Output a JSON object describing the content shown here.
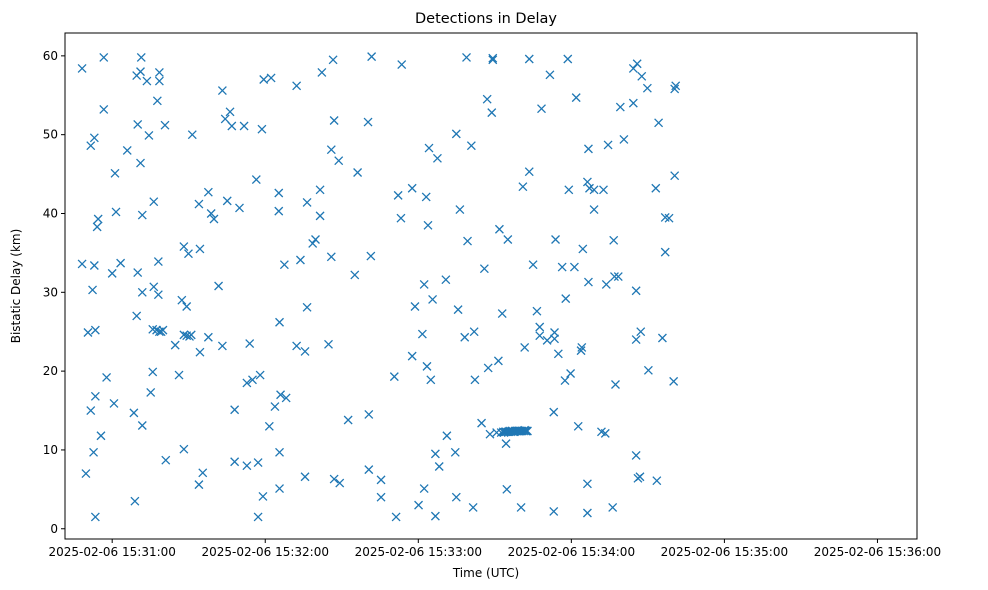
{
  "colors": {
    "marker": "#1f77b4",
    "axis": "#000000",
    "background": "#ffffff"
  },
  "chart_data": {
    "type": "scatter",
    "marker": "x",
    "title": "Detections in Delay",
    "xlabel": "Time (UTC)",
    "ylabel": "Bistatic Delay (km)",
    "xlim": [
      -18.5,
      315.5
    ],
    "ylim": [
      -1.3,
      62.9
    ],
    "x_unit": "seconds after 2025-02-06 15:31:00",
    "xticks": [
      {
        "value": 0,
        "label": "2025-02-06 15:31:00"
      },
      {
        "value": 60,
        "label": "2025-02-06 15:32:00"
      },
      {
        "value": 120,
        "label": "2025-02-06 15:33:00"
      },
      {
        "value": 180,
        "label": "2025-02-06 15:34:00"
      },
      {
        "value": 240,
        "label": "2025-02-06 15:35:00"
      },
      {
        "value": 300,
        "label": "2025-02-06 15:36:00"
      }
    ],
    "yticks": [
      0,
      10,
      20,
      30,
      40,
      50,
      60
    ],
    "series": [
      {
        "name": "detections",
        "points": [
          [
            -11.8,
            58.4
          ],
          [
            -11.8,
            33.6
          ],
          [
            -10.3,
            7.0
          ],
          [
            -9.5,
            24.9
          ],
          [
            -8.4,
            48.6
          ],
          [
            -8.4,
            15.0
          ],
          [
            -7.7,
            30.3
          ],
          [
            -7.3,
            9.7
          ],
          [
            -7.0,
            49.6
          ],
          [
            -7.0,
            33.4
          ],
          [
            -6.6,
            25.2
          ],
          [
            -6.6,
            16.8
          ],
          [
            -6.6,
            1.5
          ],
          [
            -5.9,
            38.3
          ],
          [
            -5.5,
            39.3
          ],
          [
            -4.4,
            11.8
          ],
          [
            -3.3,
            59.8
          ],
          [
            -3.3,
            53.2
          ],
          [
            -2.2,
            19.2
          ],
          [
            0.0,
            32.4
          ],
          [
            0.7,
            15.9
          ],
          [
            1.1,
            45.1
          ],
          [
            1.5,
            40.2
          ],
          [
            3.3,
            33.7
          ],
          [
            5.9,
            48.0
          ],
          [
            8.5,
            14.7
          ],
          [
            8.9,
            3.5
          ],
          [
            9.6,
            27.0
          ],
          [
            9.6,
            57.5
          ],
          [
            10.0,
            32.5
          ],
          [
            10.0,
            51.3
          ],
          [
            11.1,
            58.0
          ],
          [
            11.1,
            46.4
          ],
          [
            11.4,
            59.8
          ],
          [
            11.8,
            39.8
          ],
          [
            11.8,
            13.1
          ],
          [
            11.8,
            30.0
          ],
          [
            13.6,
            56.8
          ],
          [
            14.4,
            49.9
          ],
          [
            15.1,
            17.3
          ],
          [
            15.9,
            25.3
          ],
          [
            15.9,
            19.9
          ],
          [
            16.3,
            41.5
          ],
          [
            16.3,
            30.7
          ],
          [
            17.4,
            25.2
          ],
          [
            17.7,
            54.3
          ],
          [
            18.1,
            33.9
          ],
          [
            18.1,
            29.7
          ],
          [
            18.5,
            57.9
          ],
          [
            18.5,
            56.8
          ],
          [
            18.5,
            25.0
          ],
          [
            19.2,
            25.0
          ],
          [
            19.9,
            25.2
          ],
          [
            20.7,
            51.2
          ],
          [
            21.0,
            8.7
          ],
          [
            24.7,
            23.3
          ],
          [
            26.2,
            19.5
          ],
          [
            27.3,
            29.0
          ],
          [
            28.1,
            24.6
          ],
          [
            28.1,
            35.8
          ],
          [
            28.1,
            10.1
          ],
          [
            29.2,
            28.2
          ],
          [
            29.2,
            24.5
          ],
          [
            29.9,
            34.9
          ],
          [
            30.3,
            24.4
          ],
          [
            31.0,
            24.6
          ],
          [
            31.4,
            50.0
          ],
          [
            34.0,
            41.2
          ],
          [
            34.0,
            5.6
          ],
          [
            34.4,
            35.5
          ],
          [
            34.4,
            22.4
          ],
          [
            35.5,
            7.1
          ],
          [
            37.7,
            42.7
          ],
          [
            37.7,
            24.3
          ],
          [
            38.8,
            40.0
          ],
          [
            39.9,
            39.3
          ],
          [
            41.7,
            30.8
          ],
          [
            43.2,
            55.6
          ],
          [
            43.2,
            23.2
          ],
          [
            44.3,
            52.0
          ],
          [
            45.1,
            41.6
          ],
          [
            46.2,
            52.9
          ],
          [
            46.9,
            51.1
          ],
          [
            48.0,
            15.1
          ],
          [
            48.0,
            8.5
          ],
          [
            49.9,
            40.7
          ],
          [
            51.7,
            51.1
          ],
          [
            52.8,
            8.0
          ],
          [
            52.8,
            18.5
          ],
          [
            53.9,
            23.5
          ],
          [
            55.0,
            18.9
          ],
          [
            56.5,
            44.3
          ],
          [
            57.2,
            8.4
          ],
          [
            57.2,
            1.5
          ],
          [
            58.0,
            19.5
          ],
          [
            58.7,
            50.7
          ],
          [
            59.1,
            4.1
          ],
          [
            59.4,
            57.0
          ],
          [
            61.6,
            13.0
          ],
          [
            62.3,
            57.2
          ],
          [
            63.8,
            15.5
          ],
          [
            65.3,
            42.6
          ],
          [
            65.3,
            40.3
          ],
          [
            65.6,
            26.2
          ],
          [
            65.6,
            9.7
          ],
          [
            65.6,
            5.1
          ],
          [
            66.0,
            17.0
          ],
          [
            67.5,
            33.5
          ],
          [
            68.2,
            16.6
          ],
          [
            72.3,
            56.2
          ],
          [
            72.3,
            23.2
          ],
          [
            73.8,
            34.1
          ],
          [
            75.6,
            22.5
          ],
          [
            75.6,
            6.6
          ],
          [
            76.4,
            28.1
          ],
          [
            76.4,
            41.4
          ],
          [
            78.6,
            36.2
          ],
          [
            79.7,
            36.7
          ],
          [
            81.5,
            43.0
          ],
          [
            81.5,
            39.7
          ],
          [
            82.2,
            57.9
          ],
          [
            84.8,
            23.4
          ],
          [
            85.9,
            34.5
          ],
          [
            85.9,
            48.1
          ],
          [
            86.6,
            59.5
          ],
          [
            87.0,
            51.8
          ],
          [
            87.0,
            6.3
          ],
          [
            88.8,
            46.7
          ],
          [
            89.2,
            5.8
          ],
          [
            92.5,
            13.8
          ],
          [
            95.1,
            32.2
          ],
          [
            96.2,
            45.2
          ],
          [
            100.3,
            51.6
          ],
          [
            100.6,
            14.5
          ],
          [
            100.6,
            7.5
          ],
          [
            101.4,
            34.6
          ],
          [
            101.7,
            59.9
          ],
          [
            105.4,
            6.2
          ],
          [
            105.4,
            4.0
          ],
          [
            110.6,
            19.3
          ],
          [
            111.3,
            1.5
          ],
          [
            112.1,
            42.3
          ],
          [
            113.2,
            39.4
          ],
          [
            113.5,
            58.9
          ],
          [
            117.6,
            43.2
          ],
          [
            117.6,
            21.9
          ],
          [
            118.7,
            28.2
          ],
          [
            120.1,
            3.0
          ],
          [
            121.6,
            24.7
          ],
          [
            122.3,
            31.0
          ],
          [
            122.3,
            5.1
          ],
          [
            123.1,
            42.1
          ],
          [
            123.4,
            20.6
          ],
          [
            123.8,
            38.5
          ],
          [
            124.2,
            48.3
          ],
          [
            124.9,
            18.9
          ],
          [
            125.6,
            29.1
          ],
          [
            126.7,
            1.6
          ],
          [
            126.7,
            9.5
          ],
          [
            127.5,
            47.0
          ],
          [
            128.2,
            7.9
          ],
          [
            130.8,
            31.6
          ],
          [
            131.2,
            11.8
          ],
          [
            134.5,
            9.7
          ],
          [
            134.9,
            4.0
          ],
          [
            134.9,
            50.1
          ],
          [
            135.6,
            27.8
          ],
          [
            136.3,
            40.5
          ],
          [
            138.2,
            24.3
          ],
          [
            138.9,
            59.8
          ],
          [
            139.3,
            36.5
          ],
          [
            140.8,
            48.6
          ],
          [
            141.5,
            2.7
          ],
          [
            141.9,
            25.0
          ],
          [
            142.2,
            18.9
          ],
          [
            144.8,
            13.4
          ],
          [
            145.9,
            33.0
          ],
          [
            147.0,
            54.5
          ],
          [
            147.4,
            20.4
          ],
          [
            148.1,
            12.0
          ],
          [
            148.8,
            52.8
          ],
          [
            149.2,
            59.7
          ],
          [
            149.2,
            59.5
          ],
          [
            150.7,
            12.2
          ],
          [
            151.4,
            21.3
          ],
          [
            151.8,
            38.0
          ],
          [
            152.5,
            12.2
          ],
          [
            152.9,
            27.3
          ],
          [
            153.3,
            12.3
          ],
          [
            153.6,
            12.2
          ],
          [
            154.0,
            12.3
          ],
          [
            154.4,
            10.8
          ],
          [
            154.4,
            12.3
          ],
          [
            154.7,
            5.0
          ],
          [
            155.1,
            36.7
          ],
          [
            155.1,
            12.3
          ],
          [
            155.5,
            12.3
          ],
          [
            155.8,
            12.4
          ],
          [
            156.2,
            12.3
          ],
          [
            156.6,
            12.4
          ],
          [
            156.9,
            12.4
          ],
          [
            157.3,
            12.3
          ],
          [
            157.7,
            12.3
          ],
          [
            158.0,
            12.4
          ],
          [
            158.4,
            12.4
          ],
          [
            158.8,
            12.4
          ],
          [
            159.1,
            12.4
          ],
          [
            159.5,
            12.4
          ],
          [
            159.9,
            12.4
          ],
          [
            160.2,
            12.4
          ],
          [
            160.6,
            12.4
          ],
          [
            160.3,
            2.7
          ],
          [
            161.0,
            43.4
          ],
          [
            161.3,
            12.4
          ],
          [
            161.7,
            12.5
          ],
          [
            161.7,
            23.0
          ],
          [
            162.1,
            12.4
          ],
          [
            162.4,
            12.4
          ],
          [
            162.8,
            12.4
          ],
          [
            163.5,
            59.6
          ],
          [
            163.5,
            45.3
          ],
          [
            165.0,
            33.5
          ],
          [
            166.5,
            27.6
          ],
          [
            167.6,
            25.6
          ],
          [
            167.6,
            24.5
          ],
          [
            168.3,
            53.3
          ],
          [
            170.5,
            23.9
          ],
          [
            171.6,
            57.6
          ],
          [
            173.1,
            14.8
          ],
          [
            173.1,
            2.2
          ],
          [
            173.4,
            24.9
          ],
          [
            173.4,
            24.1
          ],
          [
            173.8,
            36.7
          ],
          [
            174.9,
            22.2
          ],
          [
            176.4,
            33.2
          ],
          [
            177.5,
            18.8
          ],
          [
            177.8,
            29.2
          ],
          [
            178.6,
            59.6
          ],
          [
            179.0,
            43.0
          ],
          [
            179.7,
            19.7
          ],
          [
            181.2,
            33.2
          ],
          [
            181.9,
            54.7
          ],
          [
            182.7,
            13.0
          ],
          [
            183.8,
            22.6
          ],
          [
            184.1,
            23.0
          ],
          [
            184.5,
            35.5
          ],
          [
            186.3,
            2.0
          ],
          [
            186.3,
            5.7
          ],
          [
            186.3,
            44.0
          ],
          [
            186.7,
            31.3
          ],
          [
            186.7,
            48.2
          ],
          [
            187.1,
            43.2
          ],
          [
            188.9,
            40.5
          ],
          [
            188.9,
            43.0
          ],
          [
            191.8,
            12.3
          ],
          [
            192.6,
            43.0
          ],
          [
            193.3,
            12.1
          ],
          [
            193.7,
            31.0
          ],
          [
            194.4,
            48.7
          ],
          [
            196.2,
            2.7
          ],
          [
            196.6,
            36.6
          ],
          [
            196.9,
            32.0
          ],
          [
            197.3,
            18.3
          ],
          [
            198.4,
            32.0
          ],
          [
            199.2,
            53.5
          ],
          [
            200.6,
            49.4
          ],
          [
            204.3,
            58.4
          ],
          [
            204.3,
            54.0
          ],
          [
            205.4,
            24.0
          ],
          [
            205.4,
            30.2
          ],
          [
            205.4,
            9.3
          ],
          [
            205.8,
            59.0
          ],
          [
            206.1,
            6.4
          ],
          [
            206.9,
            6.6
          ],
          [
            207.2,
            25.0
          ],
          [
            207.6,
            57.4
          ],
          [
            209.8,
            55.9
          ],
          [
            210.2,
            20.1
          ],
          [
            213.1,
            43.2
          ],
          [
            213.5,
            6.1
          ],
          [
            214.2,
            51.5
          ],
          [
            215.7,
            24.2
          ],
          [
            216.8,
            39.5
          ],
          [
            216.8,
            35.1
          ],
          [
            218.3,
            39.4
          ],
          [
            220.1,
            18.7
          ],
          [
            220.5,
            44.8
          ],
          [
            220.5,
            55.8
          ],
          [
            220.9,
            56.2
          ]
        ]
      }
    ]
  }
}
